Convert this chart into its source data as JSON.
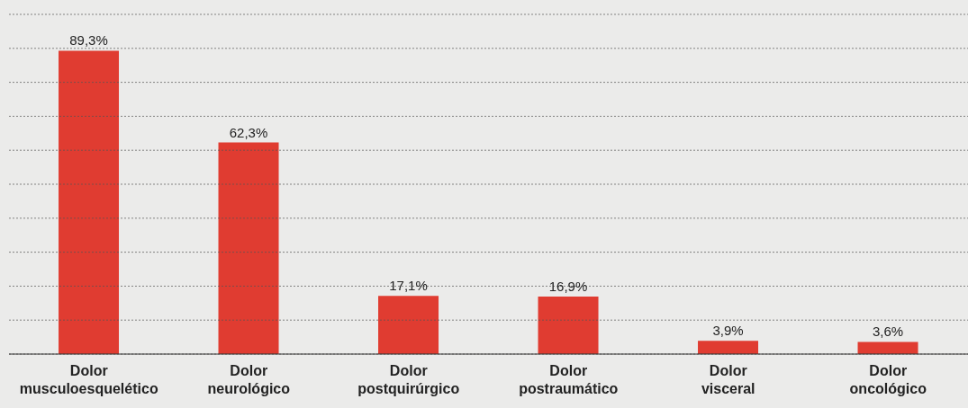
{
  "chart_data": {
    "type": "bar",
    "categories": [
      "Dolor musculoesquelético",
      "Dolor neurológico",
      "Dolor postquirúrgico",
      "Dolor postraumático",
      "Dolor visceral",
      "Dolor oncológico"
    ],
    "values": [
      89.3,
      62.3,
      17.1,
      16.9,
      3.9,
      3.6
    ],
    "value_labels": [
      "89,3%",
      "62,3%",
      "17,1%",
      "16,9%",
      "3,9%",
      "3,6%"
    ],
    "color": "#e03c31",
    "ylim": [
      0,
      100
    ],
    "yticks": [
      {
        "value": 0,
        "label": null
      },
      {
        "value": 10,
        "label": null
      },
      {
        "value": 20,
        "label": null
      },
      {
        "value": 30,
        "label": null
      },
      {
        "value": 40,
        "label": null
      },
      {
        "value": 50,
        "label": null
      },
      {
        "value": 60,
        "label": null
      },
      {
        "value": 70,
        "label": null
      },
      {
        "value": 80,
        "label": null
      },
      {
        "value": 90,
        "label": null
      },
      {
        "value": 100,
        "label": null
      }
    ],
    "tick_labels": "x",
    "grid": "y",
    "legend": false
  }
}
